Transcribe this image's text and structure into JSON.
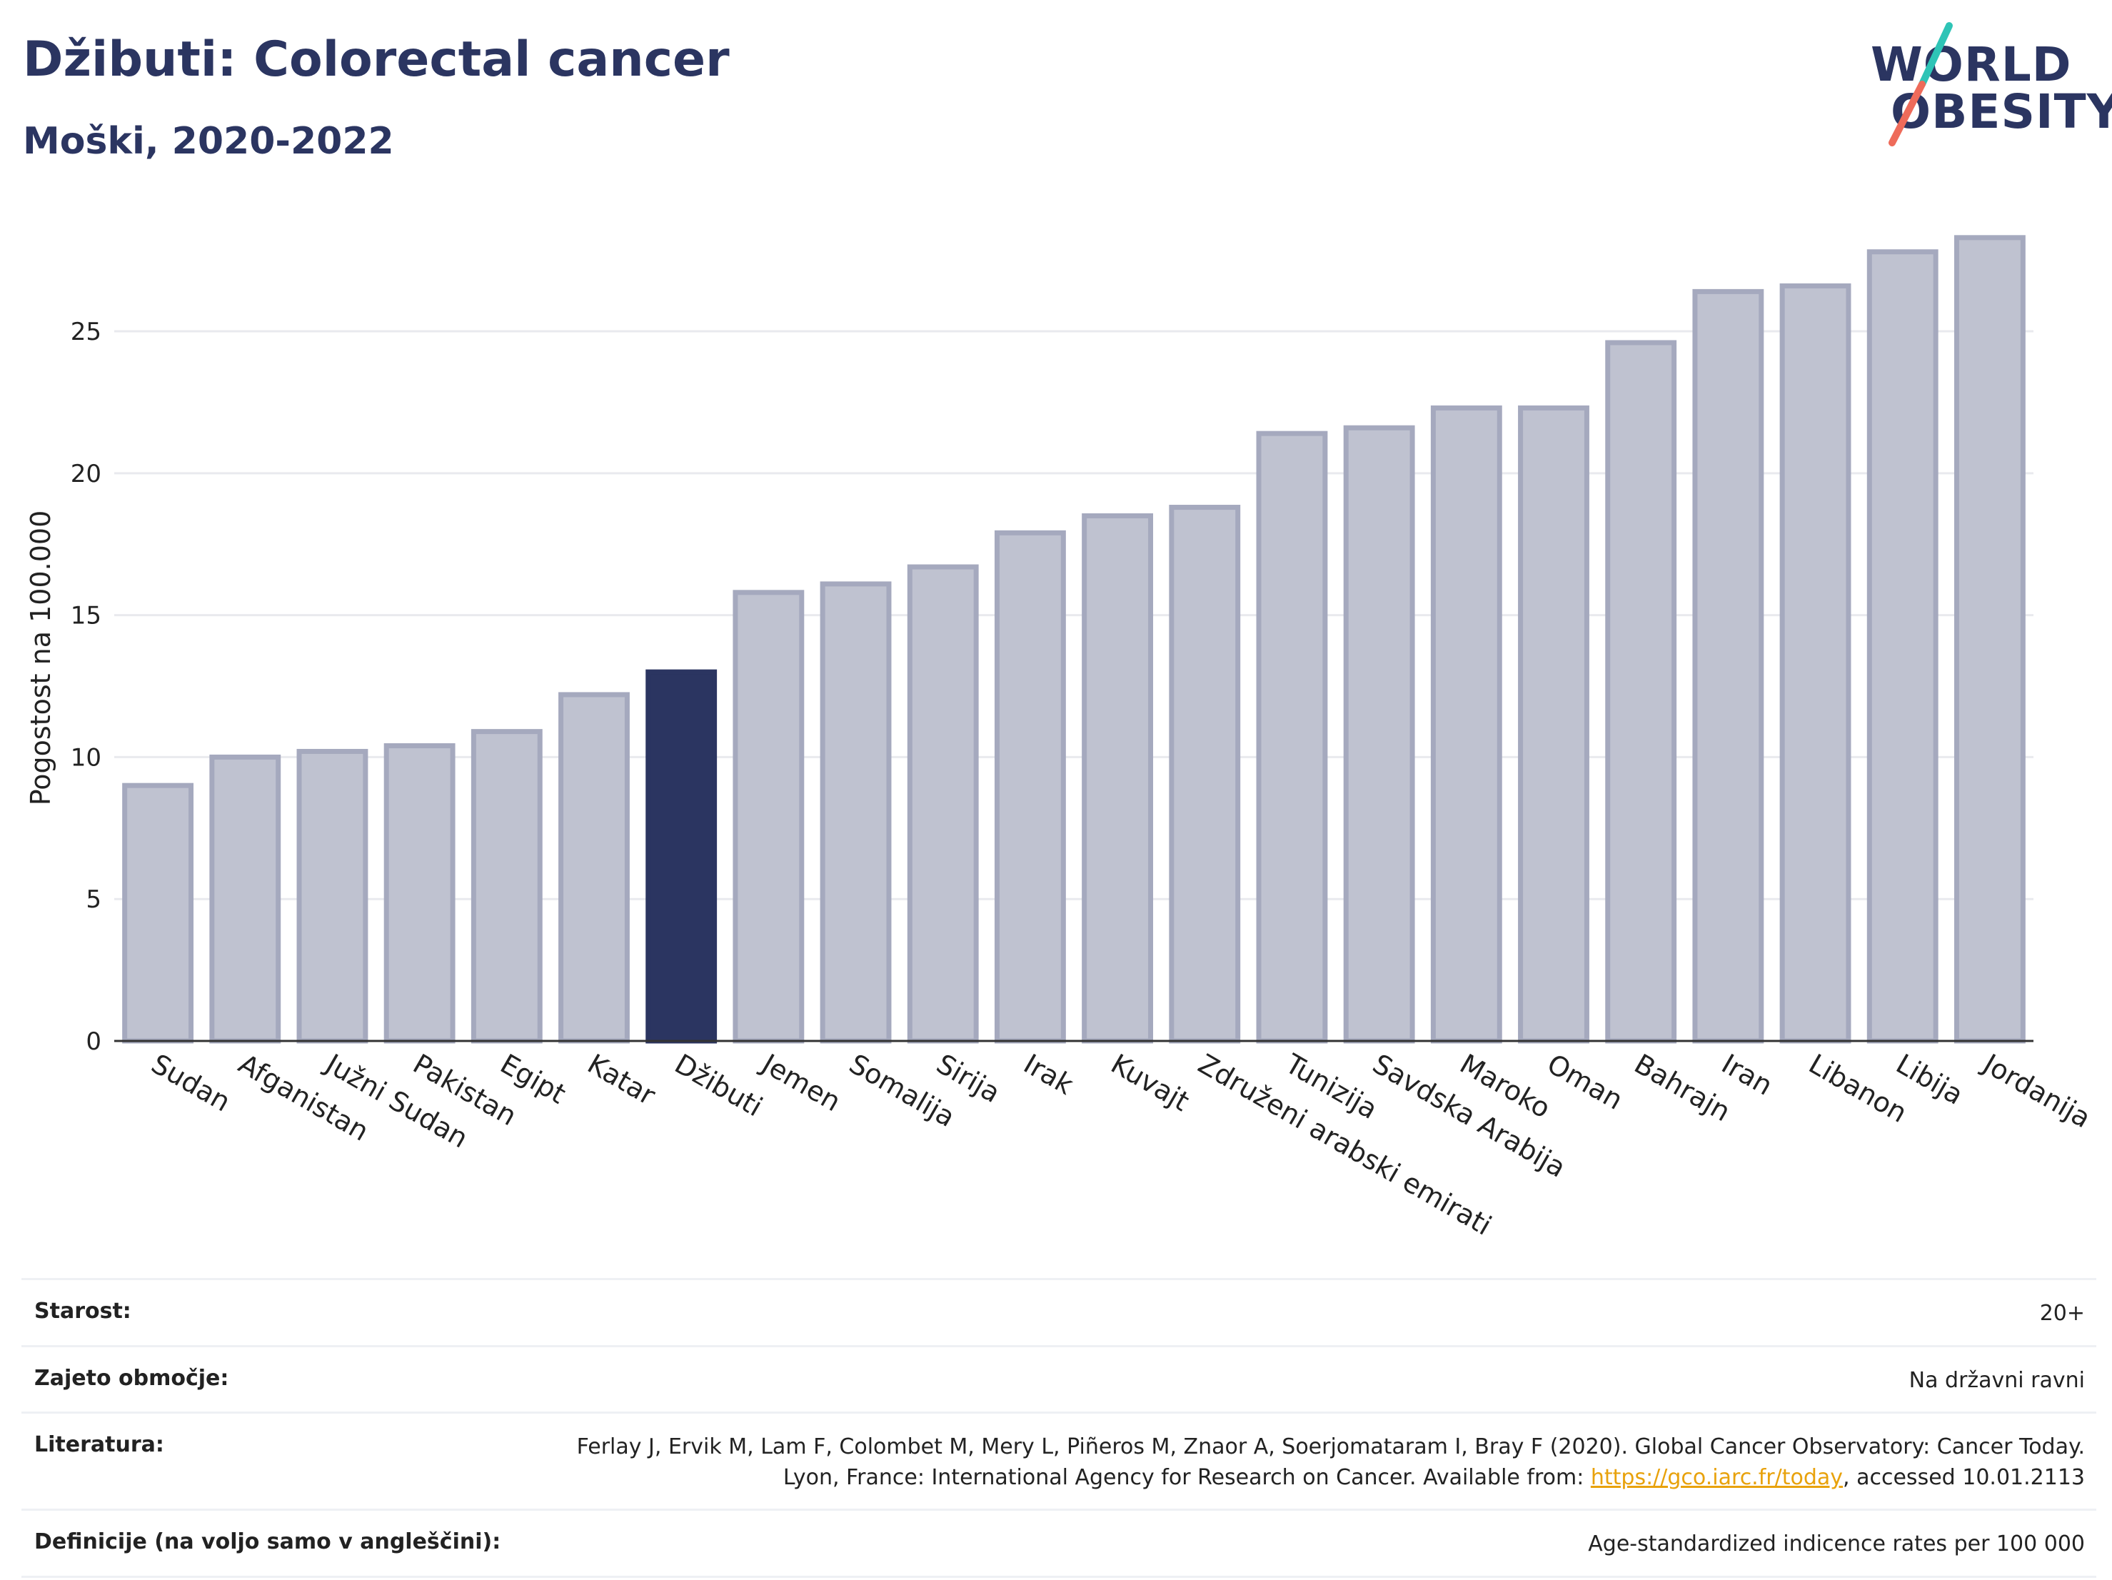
{
  "header": {
    "title": "Džibuti: Colorectal cancer",
    "subtitle": "Moški, 2020-2022"
  },
  "logo": {
    "line1": "WORLD",
    "line2": "OBESITY"
  },
  "chart_data": {
    "type": "bar",
    "categories": [
      "Sudan",
      "Afganistan",
      "Južni Sudan",
      "Pakistan",
      "Egipt",
      "Katar",
      "Džibuti",
      "Jemen",
      "Somalija",
      "Sirija",
      "Irak",
      "Kuvajt",
      "Združeni arabski emirati",
      "Tunizija",
      "Savdska Arabija",
      "Maroko",
      "Oman",
      "Bahrajn",
      "Iran",
      "Libanon",
      "Libija",
      "Jordanija"
    ],
    "values": [
      9.0,
      10.0,
      10.2,
      10.4,
      10.9,
      12.2,
      13.0,
      15.8,
      16.1,
      16.7,
      17.9,
      18.5,
      18.8,
      21.4,
      21.6,
      22.3,
      22.3,
      24.6,
      26.4,
      26.6,
      27.8,
      28.3
    ],
    "highlight": "Džibuti",
    "ylabel": "Pogostost na 100.000",
    "ylim": [
      0,
      29
    ],
    "yticks": [
      0,
      5,
      10,
      15,
      20,
      25
    ],
    "grid": true,
    "colors": {
      "bar": "#bfc2d0",
      "bar_stroke": "#a5a9be",
      "highlight": "#2b3561",
      "grid": "#e9eaee",
      "axis": "#333333"
    }
  },
  "info": [
    {
      "key": "Starost:",
      "value": "20+"
    },
    {
      "key": "Zajeto območje:",
      "value": "Na državni ravni"
    },
    {
      "key": "Literatura:",
      "value_before": "Ferlay J, Ervik M, Lam F, Colombet M, Mery L, Piñeros M, Znaor A, Soerjomataram I, Bray F (2020). Global Cancer Observatory: Cancer Today. Lyon, France: International Agency for Research on Cancer. Available from: ",
      "link": "https://gco.iarc.fr/today",
      "value_after": ", accessed 10.01.2113"
    },
    {
      "key": "Definicije (na voljo samo v angleščini):",
      "value": "Age-standardized indicence rates per 100 000"
    }
  ]
}
